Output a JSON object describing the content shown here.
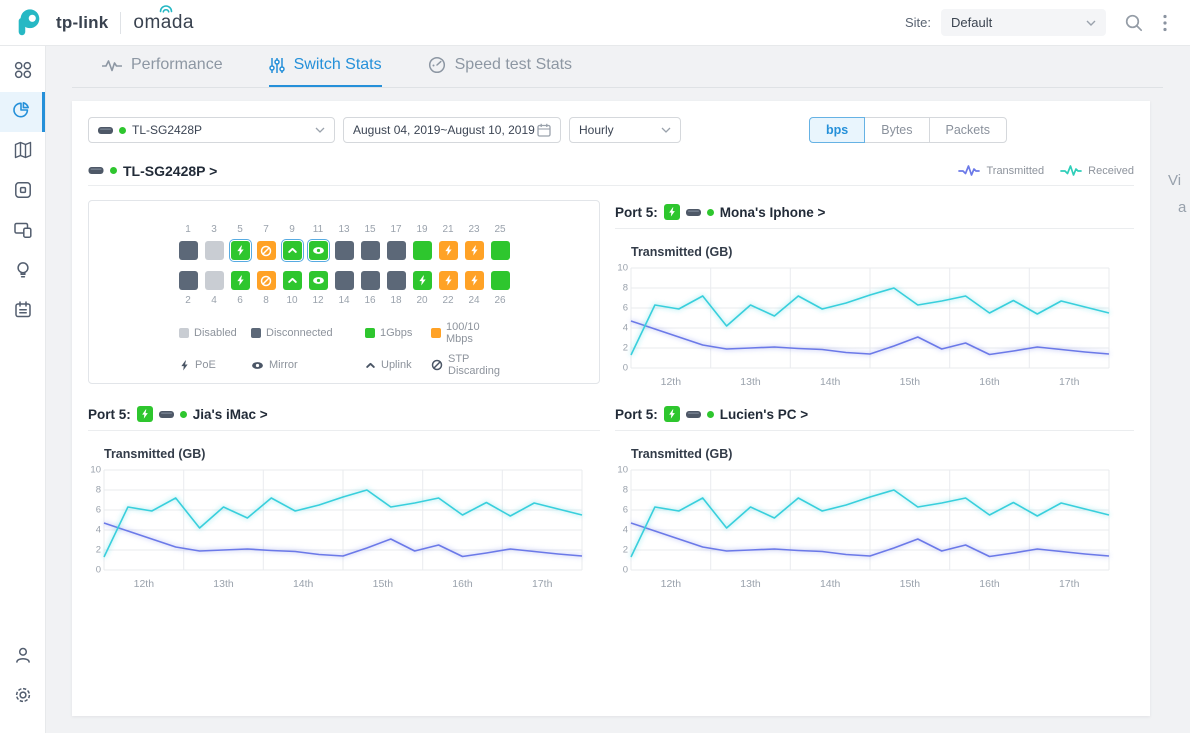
{
  "colors": {
    "accent": "#2590d9",
    "brand_teal": "#26b8c4",
    "line_transmitted": "#6b79e8",
    "line_received": "#38cfdc",
    "port_states": {
      "disabled": "#c9cdd3",
      "disconnected": "#5c6878",
      "1g": "#2ec62e",
      "100m": "#ffa226"
    },
    "legend_icon_fg": "#4b5666"
  },
  "topbar": {
    "brand": "tp-link",
    "product": "omada",
    "site_label": "Site:",
    "site_value": "Default"
  },
  "sidebar": {
    "items": [
      {
        "name": "dashboard",
        "icon": "dashboard-icon",
        "active": false
      },
      {
        "name": "statistics",
        "icon": "pie-chart-icon",
        "active": true
      },
      {
        "name": "map",
        "icon": "map-icon",
        "active": false
      },
      {
        "name": "devices",
        "icon": "device-icon",
        "active": false
      },
      {
        "name": "clients",
        "icon": "clients-icon",
        "active": false
      },
      {
        "name": "insight",
        "icon": "lightbulb-icon",
        "active": false
      },
      {
        "name": "log",
        "icon": "log-icon",
        "active": false
      }
    ],
    "bottom_items": [
      {
        "name": "account",
        "icon": "person-icon",
        "active": false
      },
      {
        "name": "settings",
        "icon": "gear-icon",
        "active": false
      }
    ]
  },
  "tabs": [
    {
      "label": "Performance",
      "icon": "pulse-icon",
      "active": false
    },
    {
      "label": "Switch Stats",
      "icon": "sliders-icon",
      "active": true
    },
    {
      "label": "Speed test Stats",
      "icon": "gauge-icon",
      "active": false
    }
  ],
  "toolbar": {
    "device_value": "TL-SG2428P",
    "date_range": "August 04, 2019~August 10, 2019",
    "interval_value": "Hourly",
    "units": [
      {
        "label": "bps",
        "active": true
      },
      {
        "label": "Bytes",
        "active": false
      },
      {
        "label": "Packets",
        "active": false
      }
    ]
  },
  "switch_header": {
    "title": "TL-SG2428P >",
    "legend": [
      {
        "label": "Transmitted",
        "color": "#6b79e8"
      },
      {
        "label": "Received",
        "color": "#38cfdc"
      }
    ]
  },
  "port_panel": {
    "ports": [
      {
        "n": 1,
        "state": "disconnected",
        "glyph": null,
        "selected": false
      },
      {
        "n": 2,
        "state": "disconnected",
        "glyph": null,
        "selected": false
      },
      {
        "n": 3,
        "state": "disabled",
        "glyph": null,
        "selected": false
      },
      {
        "n": 4,
        "state": "disabled",
        "glyph": null,
        "selected": false
      },
      {
        "n": 5,
        "state": "1g",
        "glyph": "poe",
        "selected": true
      },
      {
        "n": 6,
        "state": "1g",
        "glyph": "poe",
        "selected": false
      },
      {
        "n": 7,
        "state": "100m",
        "glyph": "stp",
        "selected": false
      },
      {
        "n": 8,
        "state": "100m",
        "glyph": "stp",
        "selected": false
      },
      {
        "n": 9,
        "state": "1g",
        "glyph": "uplink",
        "selected": true
      },
      {
        "n": 10,
        "state": "1g",
        "glyph": "uplink",
        "selected": false
      },
      {
        "n": 11,
        "state": "1g",
        "glyph": "mirror",
        "selected": true
      },
      {
        "n": 12,
        "state": "1g",
        "glyph": "mirror",
        "selected": false
      },
      {
        "n": 13,
        "state": "disconnected",
        "glyph": null,
        "selected": false
      },
      {
        "n": 14,
        "state": "disconnected",
        "glyph": null,
        "selected": false
      },
      {
        "n": 15,
        "state": "disconnected",
        "glyph": null,
        "selected": false
      },
      {
        "n": 16,
        "state": "disconnected",
        "glyph": null,
        "selected": false
      },
      {
        "n": 17,
        "state": "disconnected",
        "glyph": null,
        "selected": false
      },
      {
        "n": 18,
        "state": "disconnected",
        "glyph": null,
        "selected": false
      },
      {
        "n": 19,
        "state": "1g",
        "glyph": null,
        "selected": false
      },
      {
        "n": 20,
        "state": "1g",
        "glyph": "poe",
        "selected": false
      },
      {
        "n": 21,
        "state": "100m",
        "glyph": "poe",
        "selected": false
      },
      {
        "n": 22,
        "state": "100m",
        "glyph": "poe",
        "selected": false
      },
      {
        "n": 23,
        "state": "100m",
        "glyph": "poe",
        "selected": false
      },
      {
        "n": 24,
        "state": "100m",
        "glyph": "poe",
        "selected": false
      },
      {
        "n": 25,
        "state": "1g",
        "glyph": null,
        "selected": false
      },
      {
        "n": 26,
        "state": "1g",
        "glyph": null,
        "selected": false
      }
    ],
    "legend_row1": [
      {
        "label": "Disabled",
        "color": "#c9cdd3"
      },
      {
        "label": "Disconnected",
        "color": "#5c6878"
      },
      {
        "label": "1Gbps",
        "color": "#2ec62e"
      },
      {
        "label": "100/10 Mbps",
        "color": "#ffa226"
      }
    ],
    "legend_row2": [
      {
        "label": "PoE",
        "icon": "poe-icon"
      },
      {
        "label": "Mirror",
        "icon": "mirror-icon"
      },
      {
        "label": "Uplink",
        "icon": "uplink-icon"
      },
      {
        "label": "STP Discarding",
        "icon": "stp-icon"
      }
    ]
  },
  "sections": [
    {
      "label": "Port 5:",
      "client": "Mona's Iphone >"
    },
    {
      "label": "Port 5:",
      "client": "Jia's iMac >"
    },
    {
      "label": "Port 5:",
      "client": "Lucien's PC >"
    }
  ],
  "chart_data": [
    {
      "type": "line",
      "title": "Transmitted (GB)",
      "categories": [
        "12th",
        "13th",
        "14th",
        "15th",
        "16th",
        "17th"
      ],
      "yticks": [
        0,
        2,
        4,
        6,
        8,
        10
      ],
      "ylim": [
        0,
        10
      ],
      "grid": true,
      "series": [
        {
          "name": "Transmitted",
          "color": "#6b79e8",
          "values": [
            4.7,
            3.9,
            3.1,
            2.3,
            1.9,
            2.0,
            2.1,
            1.95,
            1.85,
            1.55,
            1.4,
            2.2,
            3.1,
            1.9,
            2.5,
            1.35,
            1.7,
            2.1,
            1.85,
            1.6,
            1.4
          ]
        },
        {
          "name": "Received",
          "color": "#38cfdc",
          "values": [
            1.3,
            6.3,
            5.9,
            7.2,
            4.2,
            6.3,
            5.2,
            7.2,
            5.9,
            6.5,
            7.3,
            8.0,
            6.3,
            6.7,
            7.2,
            5.5,
            6.75,
            5.4,
            6.7,
            6.1,
            5.5
          ]
        }
      ]
    },
    {
      "type": "line",
      "title": "Transmitted (GB)",
      "categories": [
        "12th",
        "13th",
        "14th",
        "15th",
        "16th",
        "17th"
      ],
      "yticks": [
        0,
        2,
        4,
        6,
        8,
        10
      ],
      "ylim": [
        0,
        10
      ],
      "grid": true,
      "series": [
        {
          "name": "Transmitted",
          "color": "#6b79e8",
          "values": [
            4.7,
            3.9,
            3.1,
            2.3,
            1.9,
            2.0,
            2.1,
            1.95,
            1.85,
            1.55,
            1.4,
            2.2,
            3.1,
            1.9,
            2.5,
            1.35,
            1.7,
            2.1,
            1.85,
            1.6,
            1.4
          ]
        },
        {
          "name": "Received",
          "color": "#38cfdc",
          "values": [
            1.3,
            6.3,
            5.9,
            7.2,
            4.2,
            6.3,
            5.2,
            7.2,
            5.9,
            6.5,
            7.3,
            8.0,
            6.3,
            6.7,
            7.2,
            5.5,
            6.75,
            5.4,
            6.7,
            6.1,
            5.5
          ]
        }
      ]
    },
    {
      "type": "line",
      "title": "Transmitted (GB)",
      "categories": [
        "12th",
        "13th",
        "14th",
        "15th",
        "16th",
        "17th"
      ],
      "yticks": [
        0,
        2,
        4,
        6,
        8,
        10
      ],
      "ylim": [
        0,
        10
      ],
      "grid": true,
      "series": [
        {
          "name": "Transmitted",
          "color": "#6b79e8",
          "values": [
            4.7,
            3.9,
            3.1,
            2.3,
            1.9,
            2.0,
            2.1,
            1.95,
            1.85,
            1.55,
            1.4,
            2.2,
            3.1,
            1.9,
            2.5,
            1.35,
            1.7,
            2.1,
            1.85,
            1.6,
            1.4
          ]
        },
        {
          "name": "Received",
          "color": "#38cfdc",
          "values": [
            1.3,
            6.3,
            5.9,
            7.2,
            4.2,
            6.3,
            5.2,
            7.2,
            5.9,
            6.5,
            7.3,
            8.0,
            6.3,
            6.7,
            7.2,
            5.5,
            6.75,
            5.4,
            6.7,
            6.1,
            5.5
          ]
        }
      ]
    }
  ],
  "cutoff_text": {
    "line1": "Vi",
    "line2": "a"
  }
}
